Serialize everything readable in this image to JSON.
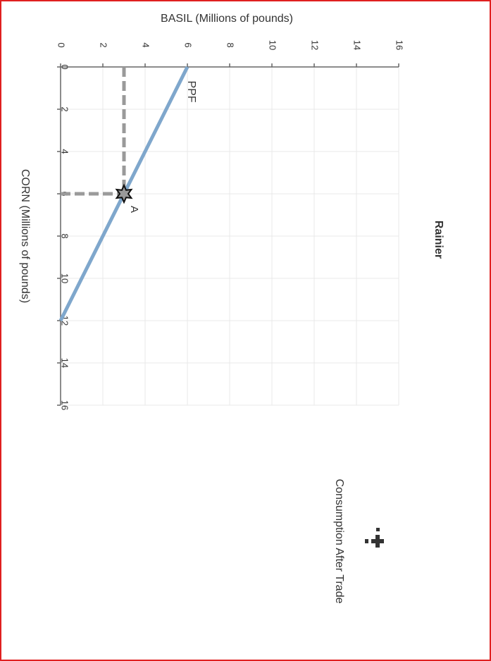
{
  "chart_data": {
    "type": "line",
    "title": "Rainier",
    "x_label": "BASIL (Millions of pounds)",
    "y_label": "CORN (Millions of pounds)",
    "xlim": [
      0,
      16
    ],
    "xticks": [
      0,
      2,
      4,
      6,
      8,
      10,
      12,
      14,
      16
    ],
    "ylim": [
      0,
      16
    ],
    "yticks": [
      0,
      2,
      4,
      6,
      8,
      10,
      12,
      14,
      16
    ],
    "grid": true,
    "series": [
      {
        "name": "PPF",
        "color": "#7fa7cc",
        "x": [
          6,
          0
        ],
        "values": [
          0,
          12
        ]
      }
    ],
    "points": [
      {
        "name": "A",
        "x": 3,
        "value": 6,
        "color": "#9a9a9a"
      }
    ],
    "legend": "Consumption After Trade"
  }
}
